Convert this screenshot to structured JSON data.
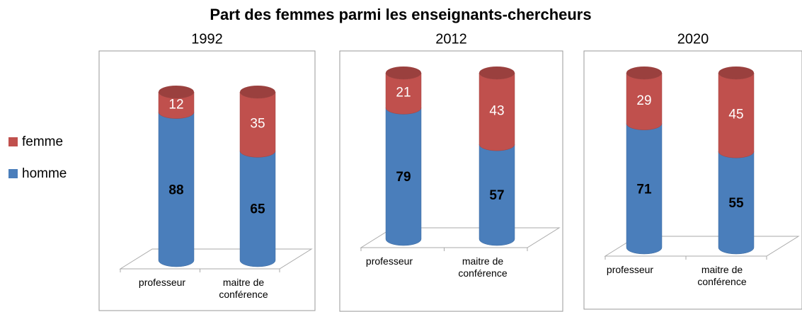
{
  "title": "Part des femmes parmi les enseignants-chercheurs",
  "chart_data": [
    {
      "type": "bar",
      "stacked": true,
      "title": "1992",
      "categories": [
        "professeur",
        "maitre de conférence"
      ],
      "series": [
        {
          "name": "homme",
          "color": "#4a7ebb",
          "values": [
            88,
            65
          ]
        },
        {
          "name": "femme",
          "color": "#c0504d",
          "values": [
            12,
            35
          ]
        }
      ],
      "ylim": [
        0,
        100
      ]
    },
    {
      "type": "bar",
      "stacked": true,
      "title": "2012",
      "categories": [
        "professeur",
        "maitre de conférence"
      ],
      "series": [
        {
          "name": "homme",
          "color": "#4a7ebb",
          "values": [
            79,
            57
          ]
        },
        {
          "name": "femme",
          "color": "#c0504d",
          "values": [
            21,
            43
          ]
        }
      ],
      "ylim": [
        0,
        100
      ]
    },
    {
      "type": "bar",
      "stacked": true,
      "title": "2020",
      "categories": [
        "professeur",
        "maitre de conférence"
      ],
      "series": [
        {
          "name": "homme",
          "color": "#4a7ebb",
          "values": [
            71,
            55
          ]
        },
        {
          "name": "femme",
          "color": "#c0504d",
          "values": [
            29,
            45
          ]
        }
      ],
      "ylim": [
        0,
        100
      ]
    }
  ]
}
